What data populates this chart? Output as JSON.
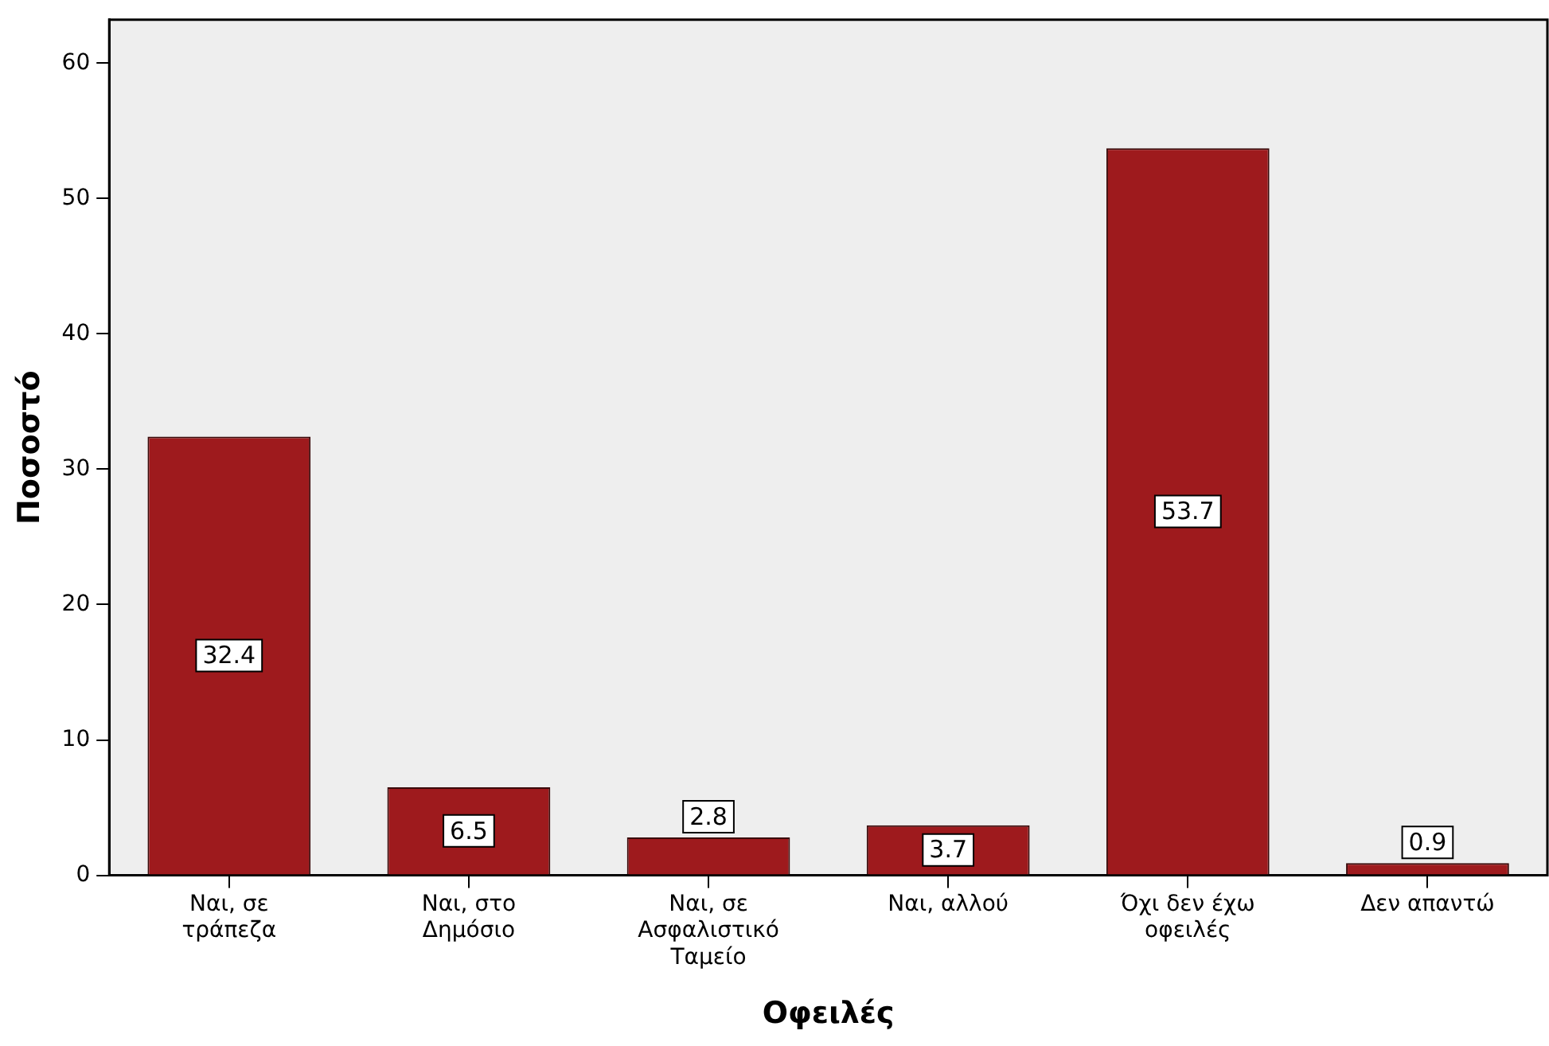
{
  "chart_data": {
    "type": "bar",
    "xlabel": "Οφειλές",
    "ylabel": "Ποσοστό",
    "categories": [
      "Ναι, σε τράπεζα",
      "Ναι, στο Δημόσιο",
      "Ναι, σε Ασφαλιστικό Ταμείο",
      "Ναι, αλλού",
      "Όχι δεν έχω οφειλές",
      "Δεν απαντώ"
    ],
    "values": [
      32.4,
      6.5,
      2.8,
      3.7,
      53.7,
      0.9
    ],
    "color": "#9e1a1d",
    "ylim": [
      0,
      63.2
    ],
    "yticks": [
      0,
      10,
      20,
      30,
      40,
      50,
      60
    ],
    "grid": false,
    "legend": false,
    "data_labels": true
  }
}
